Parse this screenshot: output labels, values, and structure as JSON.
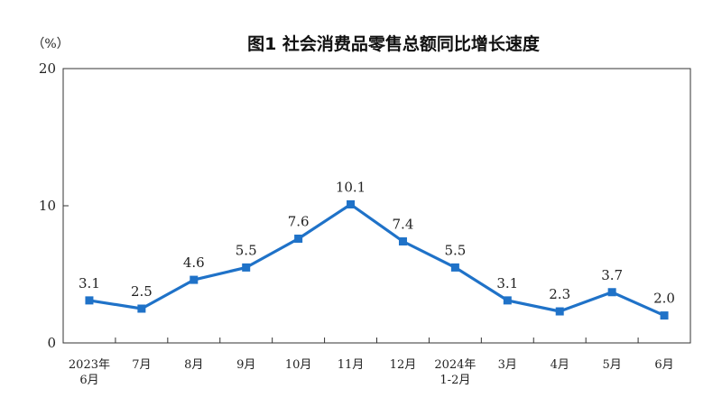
{
  "chart_data": {
    "type": "line",
    "title": "图1  社会消费品零售总额同比增长速度",
    "unit_label": "（%）",
    "categories": [
      [
        "2023年",
        "6月"
      ],
      [
        "7月"
      ],
      [
        "8月"
      ],
      [
        "9月"
      ],
      [
        "10月"
      ],
      [
        "11月"
      ],
      [
        "12月"
      ],
      [
        "2024年",
        "1-2月"
      ],
      [
        "3月"
      ],
      [
        "4月"
      ],
      [
        "5月"
      ],
      [
        "6月"
      ]
    ],
    "values": [
      3.1,
      2.5,
      4.6,
      5.5,
      7.6,
      10.1,
      7.4,
      5.5,
      3.1,
      2.3,
      3.7,
      2.0
    ],
    "value_labels": [
      "3.1",
      "2.5",
      "4.6",
      "5.5",
      "7.6",
      "10.1",
      "7.4",
      "5.5",
      "3.1",
      "2.3",
      "3.7",
      "2.0"
    ],
    "ylim": [
      0,
      20
    ],
    "yticks": [
      "0",
      "10",
      "20"
    ],
    "ytick_values": [
      0,
      10,
      20
    ],
    "grid": false,
    "line_color": "#1f72c8",
    "marker": "square"
  }
}
